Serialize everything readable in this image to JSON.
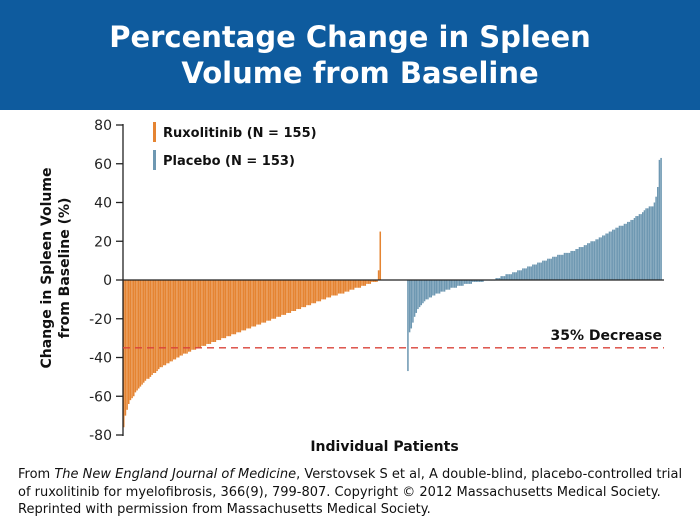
{
  "title": {
    "line1": "Percentage Change in Spleen",
    "line2": "Volume from Baseline"
  },
  "colors": {
    "banner": "#0e5b9e",
    "ruxolitinib": "#e58432",
    "placebo": "#6e98b2",
    "threshold": "#d9433a",
    "axis": "#222222"
  },
  "chart_data": {
    "type": "bar",
    "title": "Percentage Change in Spleen Volume from Baseline",
    "xlabel": "Individual Patients",
    "ylabel": "Change in Spleen Volume from Baseline (%)",
    "ylabel_lines": [
      "Change in Spleen Volume",
      "from Baseline (%)"
    ],
    "ylim": [
      -80,
      80
    ],
    "yticks": [
      80,
      60,
      40,
      20,
      0,
      -20,
      -40,
      -60,
      -80
    ],
    "legend_position": "top-left",
    "series": [
      {
        "name": "Ruxolitinib (N = 155)",
        "color": "#e58432",
        "n": 155,
        "values": [
          -76,
          -70,
          -67,
          -64,
          -62,
          -61,
          -60,
          -58,
          -57,
          -56,
          -55,
          -54,
          -53,
          -52,
          -51,
          -51,
          -50,
          -49,
          -48,
          -48,
          -47,
          -46,
          -45,
          -45,
          -44,
          -44,
          -43,
          -43,
          -42,
          -42,
          -41,
          -41,
          -40,
          -40,
          -39,
          -39,
          -38,
          -38,
          -38,
          -37,
          -37,
          -36,
          -36,
          -36,
          -35,
          -35,
          -35,
          -34,
          -34,
          -34,
          -33,
          -33,
          -33,
          -32,
          -32,
          -32,
          -31,
          -31,
          -31,
          -30,
          -30,
          -30,
          -29,
          -29,
          -29,
          -28,
          -28,
          -28,
          -27,
          -27,
          -27,
          -26,
          -26,
          -26,
          -25,
          -25,
          -25,
          -24,
          -24,
          -24,
          -23,
          -23,
          -23,
          -22,
          -22,
          -22,
          -21,
          -21,
          -21,
          -20,
          -20,
          -20,
          -19,
          -19,
          -19,
          -18,
          -18,
          -18,
          -17,
          -17,
          -17,
          -16,
          -16,
          -16,
          -15,
          -15,
          -15,
          -14,
          -14,
          -14,
          -13,
          -13,
          -13,
          -12,
          -12,
          -12,
          -11,
          -11,
          -11,
          -10,
          -10,
          -10,
          -9,
          -9,
          -9,
          -8,
          -8,
          -8,
          -8,
          -7,
          -7,
          -7,
          -7,
          -6,
          -6,
          -6,
          -5,
          -5,
          -5,
          -4,
          -4,
          -4,
          -4,
          -3,
          -3,
          -3,
          -2,
          -2,
          -2,
          -1,
          -1,
          -1,
          -1,
          5,
          25
        ]
      },
      {
        "name": "Placebo (N = 153)",
        "color": "#6e98b2",
        "n": 153,
        "values": [
          -47,
          -27,
          -25,
          -22,
          -19,
          -17,
          -15,
          -14,
          -13,
          -12,
          -11,
          -10,
          -10,
          -9,
          -9,
          -8,
          -8,
          -7,
          -7,
          -7,
          -6,
          -6,
          -6,
          -5,
          -5,
          -5,
          -4,
          -4,
          -4,
          -4,
          -3,
          -3,
          -3,
          -3,
          -2,
          -2,
          -2,
          -2,
          -2,
          -1,
          -1,
          -1,
          -1,
          -1,
          -1,
          -1,
          0,
          0,
          0,
          0,
          0,
          0,
          0,
          1,
          1,
          1,
          2,
          2,
          2,
          3,
          3,
          3,
          3,
          4,
          4,
          4,
          5,
          5,
          5,
          6,
          6,
          6,
          7,
          7,
          7,
          8,
          8,
          8,
          9,
          9,
          9,
          10,
          10,
          10,
          11,
          11,
          11,
          12,
          12,
          12,
          13,
          13,
          13,
          13,
          14,
          14,
          14,
          14,
          15,
          15,
          15,
          16,
          16,
          17,
          17,
          17,
          18,
          18,
          19,
          19,
          20,
          20,
          20,
          21,
          21,
          22,
          22,
          23,
          23,
          24,
          24,
          25,
          25,
          26,
          26,
          27,
          27,
          28,
          28,
          28,
          29,
          29,
          30,
          30,
          31,
          31,
          32,
          33,
          33,
          34,
          34,
          35,
          36,
          37,
          37,
          38,
          38,
          38,
          40,
          43,
          48,
          62,
          63
        ]
      }
    ],
    "reference_line": {
      "value": -35,
      "label": "35% Decrease",
      "style": "dashed"
    }
  },
  "citation": {
    "prefix": "From ",
    "journal": "The New England Journal of Medicine",
    "rest": ", Verstovsek S et al, A double-blind, placebo-controlled trial of ruxolitinib for myelofibrosis, 366(9), 799-807. Copyright © 2012 Massachusetts Medical Society. Reprinted with permission from Massachusetts Medical Society."
  }
}
